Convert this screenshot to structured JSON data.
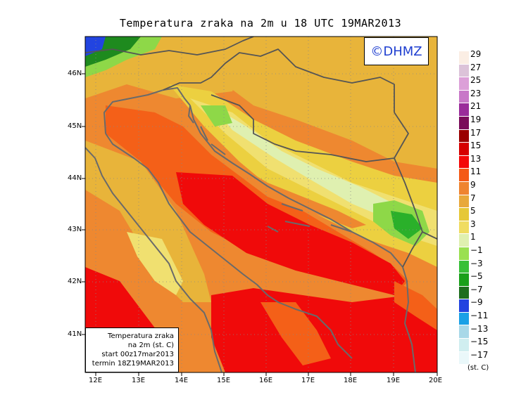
{
  "title": "Temperatura zraka na 2m u 18 UTC 19MAR2013",
  "logo_text": "©DHMZ",
  "info_box": [
    "Temperatura zraka",
    "na 2m (st. C)",
    "start 00z17mar2013",
    "termin 18Z19MAR2013"
  ],
  "lon_labels": [
    "12E",
    "13E",
    "14E",
    "15E",
    "16E",
    "17E",
    "18E",
    "19E",
    "20E"
  ],
  "lat_labels": [
    "46N",
    "45N",
    "44N",
    "43N",
    "42N",
    "41N"
  ],
  "legend": {
    "units": "(st. C)",
    "labels": [
      "29",
      "27",
      "25",
      "23",
      "21",
      "19",
      "17",
      "15",
      "13",
      "11",
      "9",
      "7",
      "5",
      "3",
      "1",
      "−1",
      "−3",
      "−5",
      "−7",
      "−9",
      "−11",
      "−13",
      "−15",
      "−17"
    ],
    "colors": [
      "#fbeee4",
      "#dcc3d9",
      "#dca0d8",
      "#c878c8",
      "#9a2c9a",
      "#7a0c5a",
      "#9a0000",
      "#d60000",
      "#f40808",
      "#f45a16",
      "#ef8430",
      "#e8a83a",
      "#e6c838",
      "#f0dc60",
      "#dff0b0",
      "#9ae050",
      "#38c038",
      "#1aa01a",
      "#1e6e1e",
      "#2244e0",
      "#1aa0e6",
      "#a8d8e8",
      "#d0eef0",
      "#eaf8fa"
    ]
  },
  "map_colors": {
    "sea_warm": "#f00a0a",
    "sea_mid": "#f46018",
    "land_warm": "#ee8830",
    "land_mild": "#e8b43a",
    "land_cool": "#ecd040",
    "hills": "#f0e070",
    "mountains": "#dff0b0",
    "cold": "#8ed848",
    "colder": "#2ab02a",
    "alps": "#1e8a1e",
    "deep_cold": "#2244e0",
    "coast": "#6a6a6a",
    "border": "#555555"
  }
}
